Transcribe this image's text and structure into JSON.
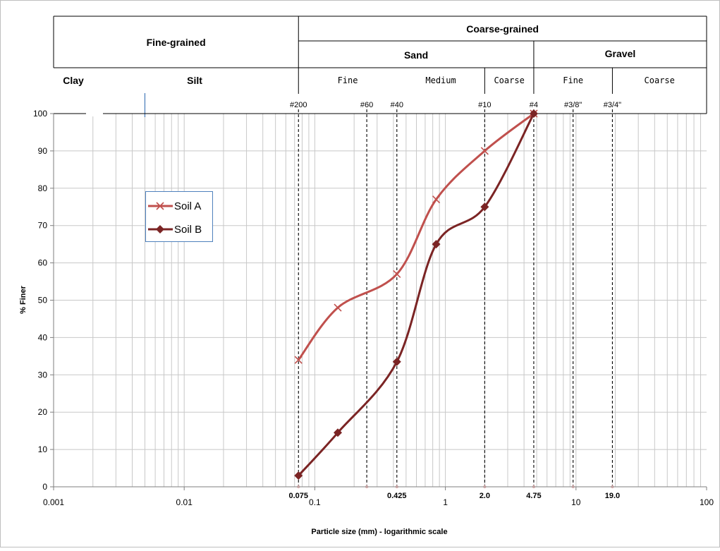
{
  "chart_data": {
    "type": "line",
    "title": "",
    "xlabel": "Particle size (mm) - logarithmic scale",
    "ylabel": "% Finer",
    "x_scale": "log",
    "xlim": [
      0.001,
      100
    ],
    "ylim": [
      0,
      100
    ],
    "x_ticks": [
      {
        "value": 0.001,
        "label": "0.001"
      },
      {
        "value": 0.01,
        "label": "0.01"
      },
      {
        "value": 0.1,
        "label": "0.1"
      },
      {
        "value": 1,
        "label": "1"
      },
      {
        "value": 10,
        "label": "10"
      },
      {
        "value": 100,
        "label": "100"
      }
    ],
    "y_ticks": [
      {
        "value": 0,
        "label": "0"
      },
      {
        "value": 10,
        "label": "10"
      },
      {
        "value": 20,
        "label": "20"
      },
      {
        "value": 30,
        "label": "30"
      },
      {
        "value": 40,
        "label": "40"
      },
      {
        "value": 50,
        "label": "50"
      },
      {
        "value": 60,
        "label": "60"
      },
      {
        "value": 70,
        "label": "70"
      },
      {
        "value": 80,
        "label": "80"
      },
      {
        "value": 90,
        "label": "90"
      },
      {
        "value": 100,
        "label": "100"
      }
    ],
    "grid": true,
    "legend_position": "upper-left",
    "series": [
      {
        "name": "Soil A",
        "color": "#c0504d",
        "marker": "x",
        "x": [
          0.075,
          0.15,
          0.425,
          0.85,
          2.0,
          4.75
        ],
        "y": [
          34,
          48,
          57,
          77,
          90,
          100
        ]
      },
      {
        "name": "Soil B",
        "color": "#7b2424",
        "marker": "diamond",
        "x": [
          0.075,
          0.15,
          0.425,
          0.85,
          2.0,
          4.75
        ],
        "y": [
          3,
          14.5,
          33.5,
          65,
          75,
          100
        ]
      }
    ],
    "sieves": [
      {
        "label": "#200",
        "size": 0.075,
        "value_label": "0.075"
      },
      {
        "label": "#60",
        "size": 0.25,
        "value_label": ""
      },
      {
        "label": "#40",
        "size": 0.425,
        "value_label": "0.425"
      },
      {
        "label": "#10",
        "size": 2.0,
        "value_label": "2.0"
      },
      {
        "label": "#4",
        "size": 4.75,
        "value_label": "4.75"
      },
      {
        "label": "#3/8\"",
        "size": 9.5,
        "value_label": ""
      },
      {
        "label": "#3/4\"",
        "size": 19.0,
        "value_label": "19.0"
      }
    ],
    "classification": {
      "fine_grained": "Fine-grained",
      "coarse_grained": "Coarse-grained",
      "sand": "Sand",
      "gravel": "Gravel",
      "clay": "Clay",
      "silt": "Silt",
      "sand_fine": "Fine",
      "sand_medium": "Medium",
      "sand_coarse": "Coarse",
      "gravel_fine": "Fine",
      "gravel_coarse": "Coarse",
      "clay_silt_boundary": 0.005,
      "silt_sand_boundary": 0.075,
      "sand_fine_medium_boundary": 0.425,
      "sand_medium_coarse_boundary": 2.0,
      "sand_gravel_boundary": 4.75,
      "gravel_fine_coarse_boundary": 19.0
    },
    "colors": {
      "grid": "#c8c8c8",
      "axis": "#7f7f7f",
      "legend_border": "#4f81bd",
      "clay_silt_divider": "#4f81bd"
    }
  }
}
